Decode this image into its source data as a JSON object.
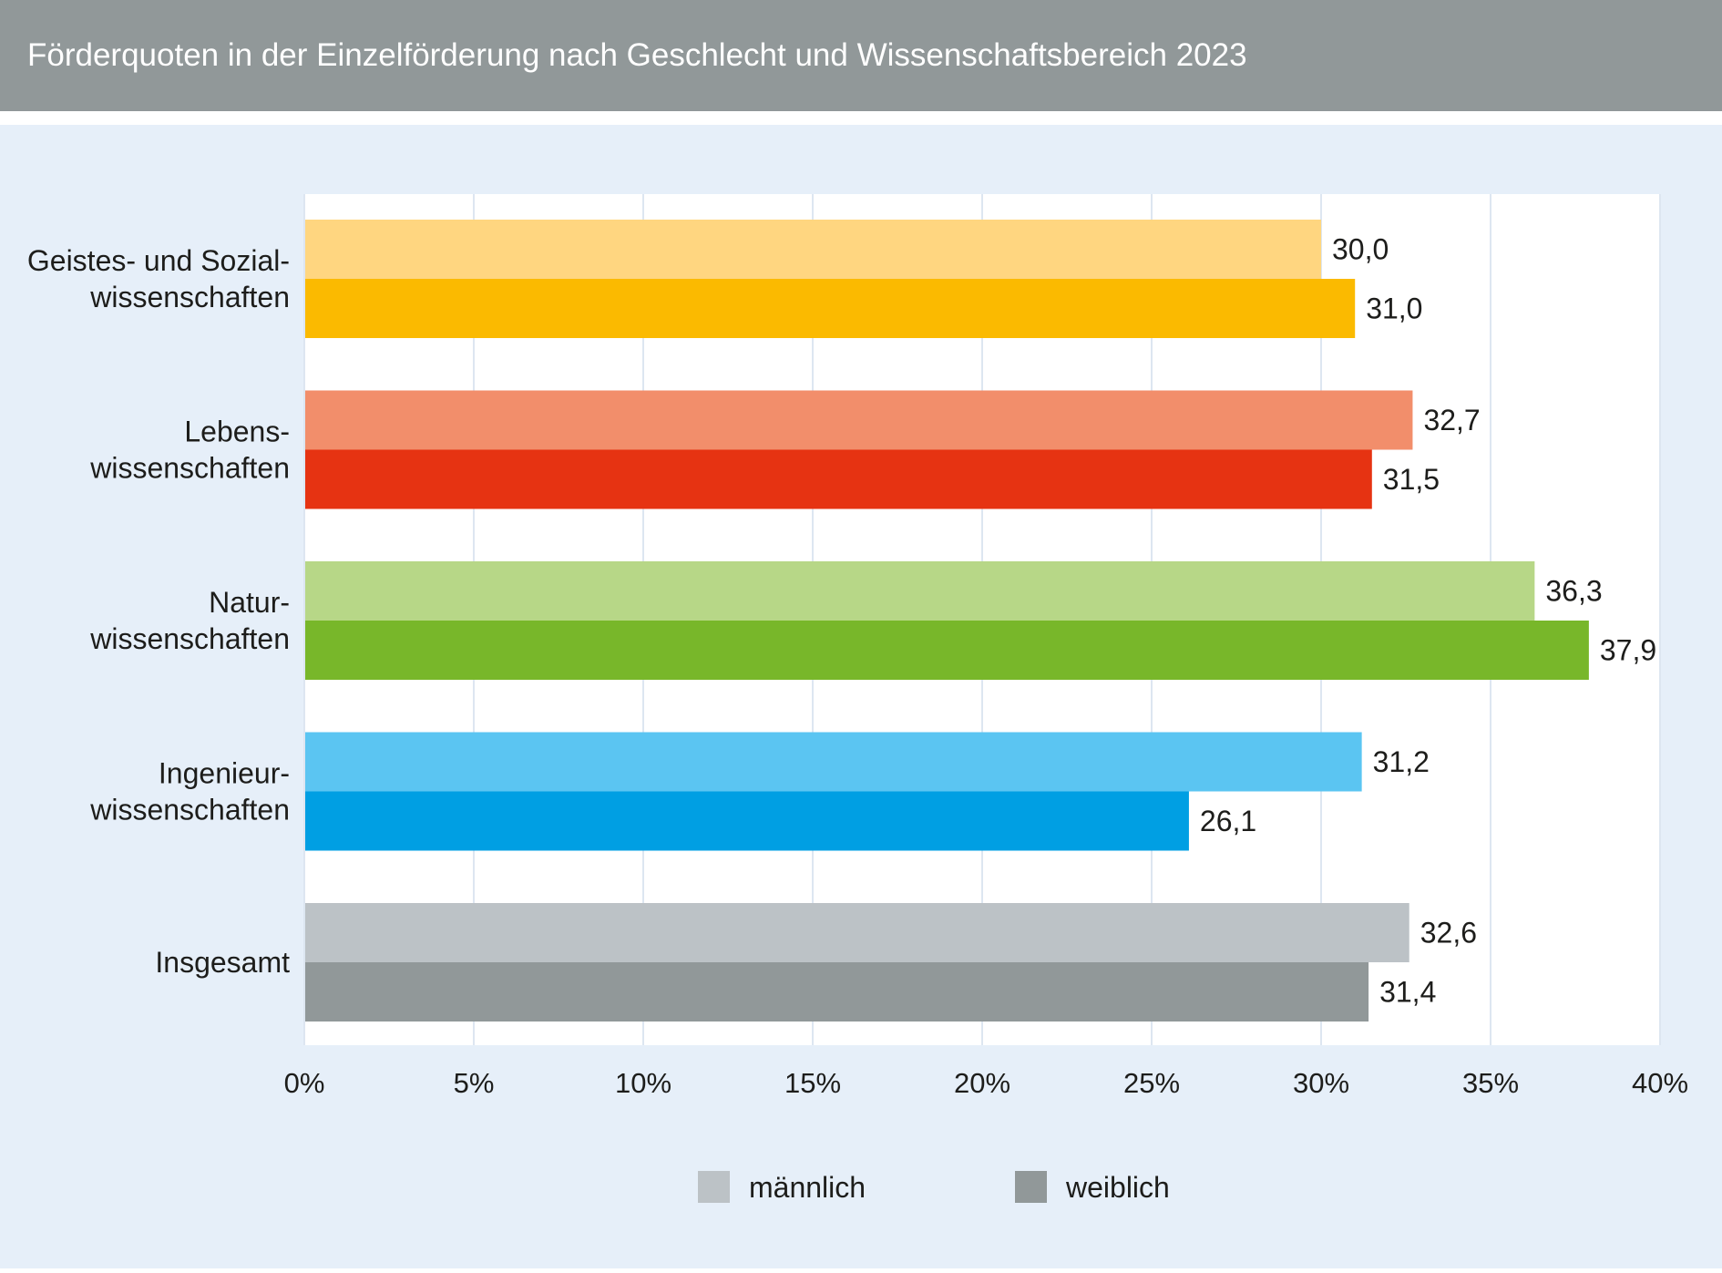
{
  "header": {
    "title": "Förderquoten in der Einzelförderung nach Geschlecht und Wissenschaftsbereich 2023"
  },
  "chart_data": {
    "type": "bar",
    "orientation": "horizontal",
    "title": "Förderquoten in der Einzelförderung nach Geschlecht und Wissenschaftsbereich 2023",
    "xlabel": "",
    "ylabel": "",
    "xlim": [
      0,
      40
    ],
    "xticks": [
      {
        "value": 0,
        "label": "0%"
      },
      {
        "value": 5,
        "label": "5%"
      },
      {
        "value": 10,
        "label": "10%"
      },
      {
        "value": 15,
        "label": "15%"
      },
      {
        "value": 20,
        "label": "20%"
      },
      {
        "value": 25,
        "label": "25%"
      },
      {
        "value": 30,
        "label": "30%"
      },
      {
        "value": 35,
        "label": "35%"
      },
      {
        "value": 40,
        "label": "40%"
      }
    ],
    "grid": true,
    "legend_position": "bottom-center",
    "categories": [
      {
        "lines": [
          "Geistes- und Sozial-",
          "wissenschaften"
        ],
        "male_color": "#ffd680",
        "female_color": "#fbba00"
      },
      {
        "lines": [
          "Lebens-",
          "wissenschaften"
        ],
        "male_color": "#f28e6b",
        "female_color": "#e63312"
      },
      {
        "lines": [
          "Natur-",
          "wissenschaften"
        ],
        "male_color": "#b7d787",
        "female_color": "#78b72a"
      },
      {
        "lines": [
          "Ingenieur-",
          "wissenschaften"
        ],
        "male_color": "#5bc5f2",
        "female_color": "#009fe3"
      },
      {
        "lines": [
          "Insgesamt"
        ],
        "male_color": "#bcc2c6",
        "female_color": "#919899"
      }
    ],
    "series": [
      {
        "name": "männlich",
        "legend_color": "#bcc2c6",
        "values": [
          30.0,
          32.7,
          36.3,
          31.2,
          32.6
        ],
        "labels": [
          "30,0",
          "32,7",
          "36,3",
          "31,2",
          "32,6"
        ]
      },
      {
        "name": "weiblich",
        "legend_color": "#919899",
        "values": [
          31.0,
          31.5,
          37.9,
          26.1,
          31.4
        ],
        "labels": [
          "31,0",
          "31,5",
          "37,9",
          "26,1",
          "31,4"
        ]
      }
    ]
  },
  "colors": {
    "header_bg": "#919899",
    "panel_bg": "#e6eff9",
    "plot_bg": "#ffffff",
    "text": "#1d1d1b"
  }
}
